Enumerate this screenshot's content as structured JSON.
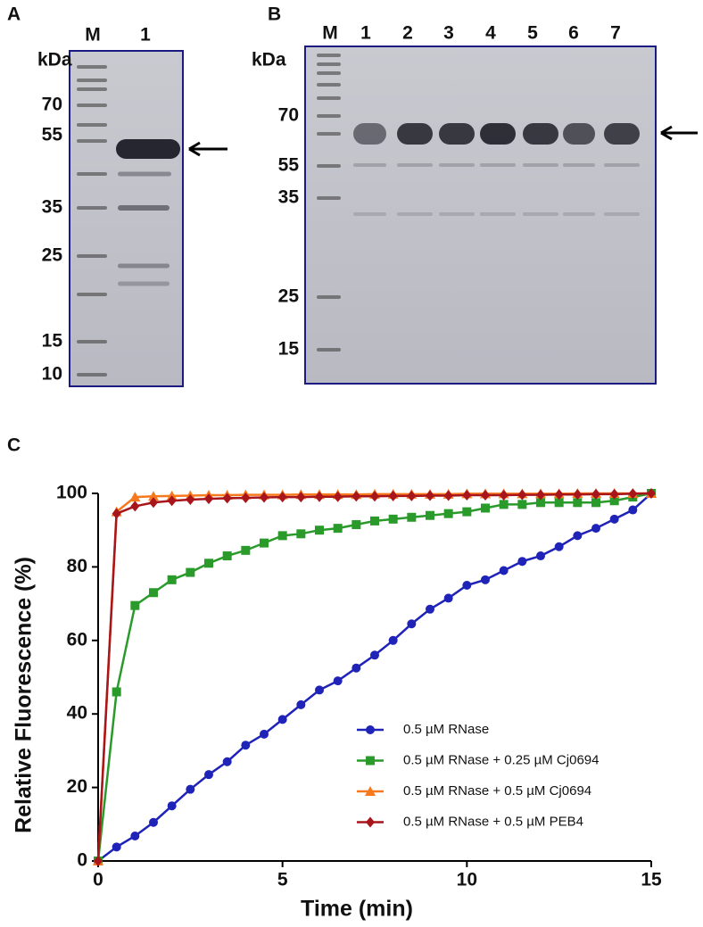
{
  "gels": [
    {
      "panel": "A",
      "lanes": [
        "M",
        "1"
      ],
      "unit": "kDa",
      "markers": [
        70,
        55,
        35,
        25,
        15,
        10
      ]
    },
    {
      "panel": "B",
      "lanes": [
        "M",
        "1",
        "2",
        "3",
        "4",
        "5",
        "6",
        "7"
      ],
      "unit": "kDa",
      "markers": [
        70,
        55,
        35,
        25,
        15
      ]
    }
  ],
  "chart_data": {
    "type": "line",
    "panel": "C",
    "xlabel": "Time (min)",
    "ylabel": "Relative Fluorescence (%)",
    "x": [
      0,
      0.5,
      1,
      1.5,
      2,
      2.5,
      3,
      3.5,
      4,
      4.5,
      5,
      5.5,
      6,
      6.5,
      7,
      7.5,
      8,
      8.5,
      9,
      9.5,
      10,
      10.5,
      11,
      11.5,
      12,
      12.5,
      13,
      13.5,
      14,
      14.5,
      15
    ],
    "series": [
      {
        "name": "0.5 µM RNase",
        "color": "#1f23b8",
        "marker": "circle",
        "values": [
          0,
          3.8,
          6.8,
          10.5,
          15,
          19.5,
          23.5,
          27,
          31.5,
          34.5,
          38.5,
          42.5,
          46.5,
          49,
          52.5,
          56,
          60,
          64.5,
          68.5,
          71.5,
          75,
          76.5,
          79,
          81.5,
          83,
          85.5,
          88.5,
          90.5,
          93,
          95.5,
          100
        ]
      },
      {
        "name": "0.5 µM RNase + 0.25 µM Cj0694",
        "color": "#2a9a2a",
        "marker": "square",
        "values": [
          0,
          46,
          69.5,
          73,
          76.5,
          78.5,
          81,
          83,
          84.5,
          86.5,
          88.5,
          89,
          90,
          90.5,
          91.5,
          92.5,
          93,
          93.5,
          94,
          94.5,
          95,
          96,
          97,
          97,
          97.5,
          97.5,
          97.5,
          97.5,
          98,
          99,
          100
        ]
      },
      {
        "name": "0.5 µM RNase + 0.5 µM Cj0694",
        "color": "#f7791e",
        "marker": "triangle",
        "values": [
          0,
          95,
          99,
          99.2,
          99.3,
          99.4,
          99.5,
          99.5,
          99.6,
          99.6,
          99.6,
          99.7,
          99.7,
          99.7,
          99.7,
          99.8,
          99.8,
          99.8,
          99.8,
          99.8,
          99.9,
          99.9,
          99.9,
          99.9,
          99.9,
          99.9,
          100,
          100,
          100,
          100,
          100
        ]
      },
      {
        "name": "0.5 µM RNase + 0.5 µM PEB4",
        "color": "#a8151b",
        "marker": "diamond",
        "values": [
          0,
          94.5,
          96.5,
          97.5,
          98,
          98.3,
          98.5,
          98.7,
          98.8,
          98.9,
          99,
          99,
          99.1,
          99.1,
          99.2,
          99.2,
          99.3,
          99.3,
          99.4,
          99.4,
          99.5,
          99.5,
          99.5,
          99.6,
          99.6,
          99.7,
          99.7,
          99.8,
          99.8,
          99.9,
          100
        ]
      }
    ],
    "xlim": [
      0,
      15
    ],
    "ylim": [
      0,
      100
    ],
    "xticks": [
      0,
      5,
      10,
      15
    ],
    "yticks": [
      0,
      20,
      40,
      60,
      80,
      100
    ],
    "legend": "lower right"
  }
}
